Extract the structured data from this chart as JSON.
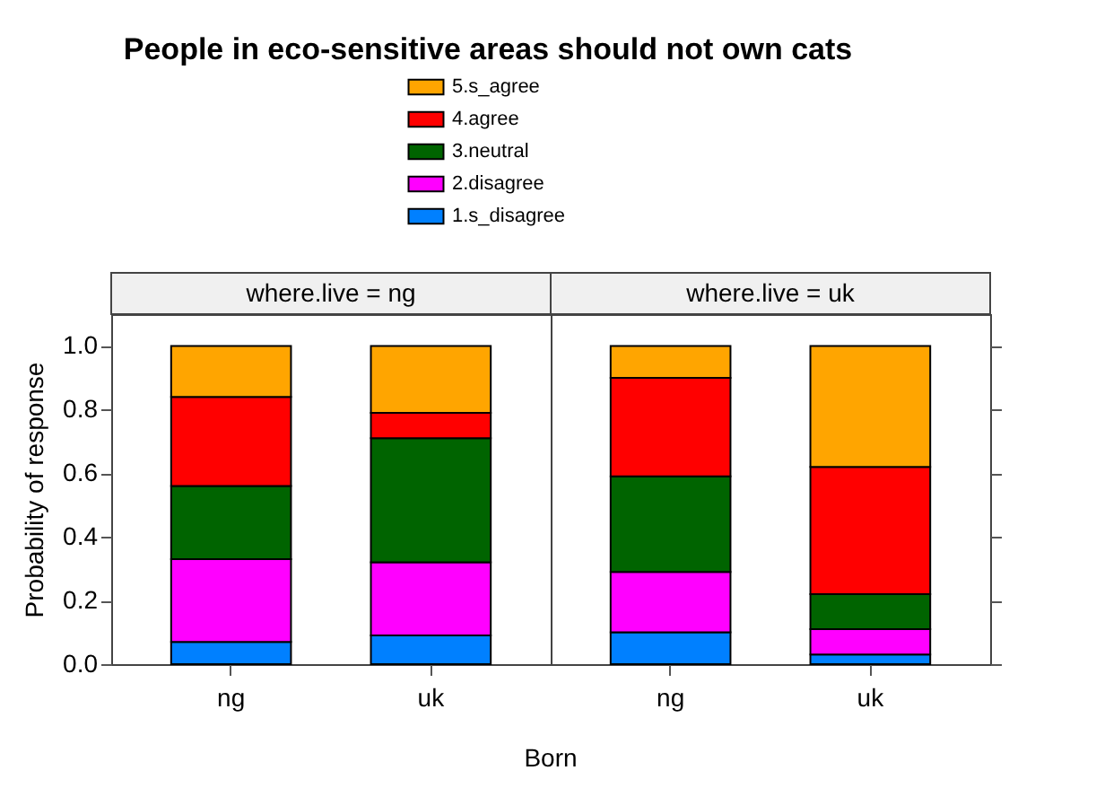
{
  "chart_data": [
    {
      "type": "bar",
      "title": "People in eco-sensitive areas should not own cats",
      "subtitle": "where.live = ng",
      "xlabel": "Born",
      "ylabel": "Probability of response",
      "categories": [
        "ng",
        "uk"
      ],
      "stacked": true,
      "legend": "top",
      "grid": false,
      "ylim": [
        0,
        1.1
      ],
      "yticks": [
        {
          "value": 0,
          "label": "0.0"
        },
        0.2,
        0.4,
        0.6,
        0.8,
        {
          "value": 1,
          "label": "1.0"
        }
      ],
      "series": [
        {
          "name": "1.s_disagree",
          "color": "#0080ff",
          "values": [
            0.07,
            0.09
          ]
        },
        {
          "name": "2.disagree",
          "color": "#ff00ff",
          "values": [
            0.26,
            0.23
          ]
        },
        {
          "name": "3.neutral",
          "color": "#006400",
          "values": [
            0.23,
            0.39
          ]
        },
        {
          "name": "4.agree",
          "color": "#ff0000",
          "values": [
            0.28,
            0.08
          ]
        },
        {
          "name": "5.s_agree",
          "color": "#ffa500",
          "values": [
            0.16,
            0.21
          ]
        }
      ]
    },
    {
      "type": "bar",
      "subtitle": "where.live = uk",
      "categories": [
        "ng",
        "uk"
      ],
      "stacked": true,
      "grid": false,
      "tick_labels": "x",
      "ylim": [
        0,
        1.1
      ],
      "yticks": [
        0,
        0.2,
        0.4,
        0.6,
        0.8,
        1
      ],
      "series": [
        {
          "color": "#0080ff",
          "values": [
            0.1,
            0.03
          ]
        },
        {
          "color": "#ff00ff",
          "values": [
            0.19,
            0.08
          ]
        },
        {
          "color": "#006400",
          "values": [
            0.3,
            0.11
          ]
        },
        {
          "color": "#ff0000",
          "values": [
            0.31,
            0.4
          ]
        },
        {
          "color": "#ffa500",
          "values": [
            0.1,
            0.38
          ]
        }
      ]
    }
  ]
}
